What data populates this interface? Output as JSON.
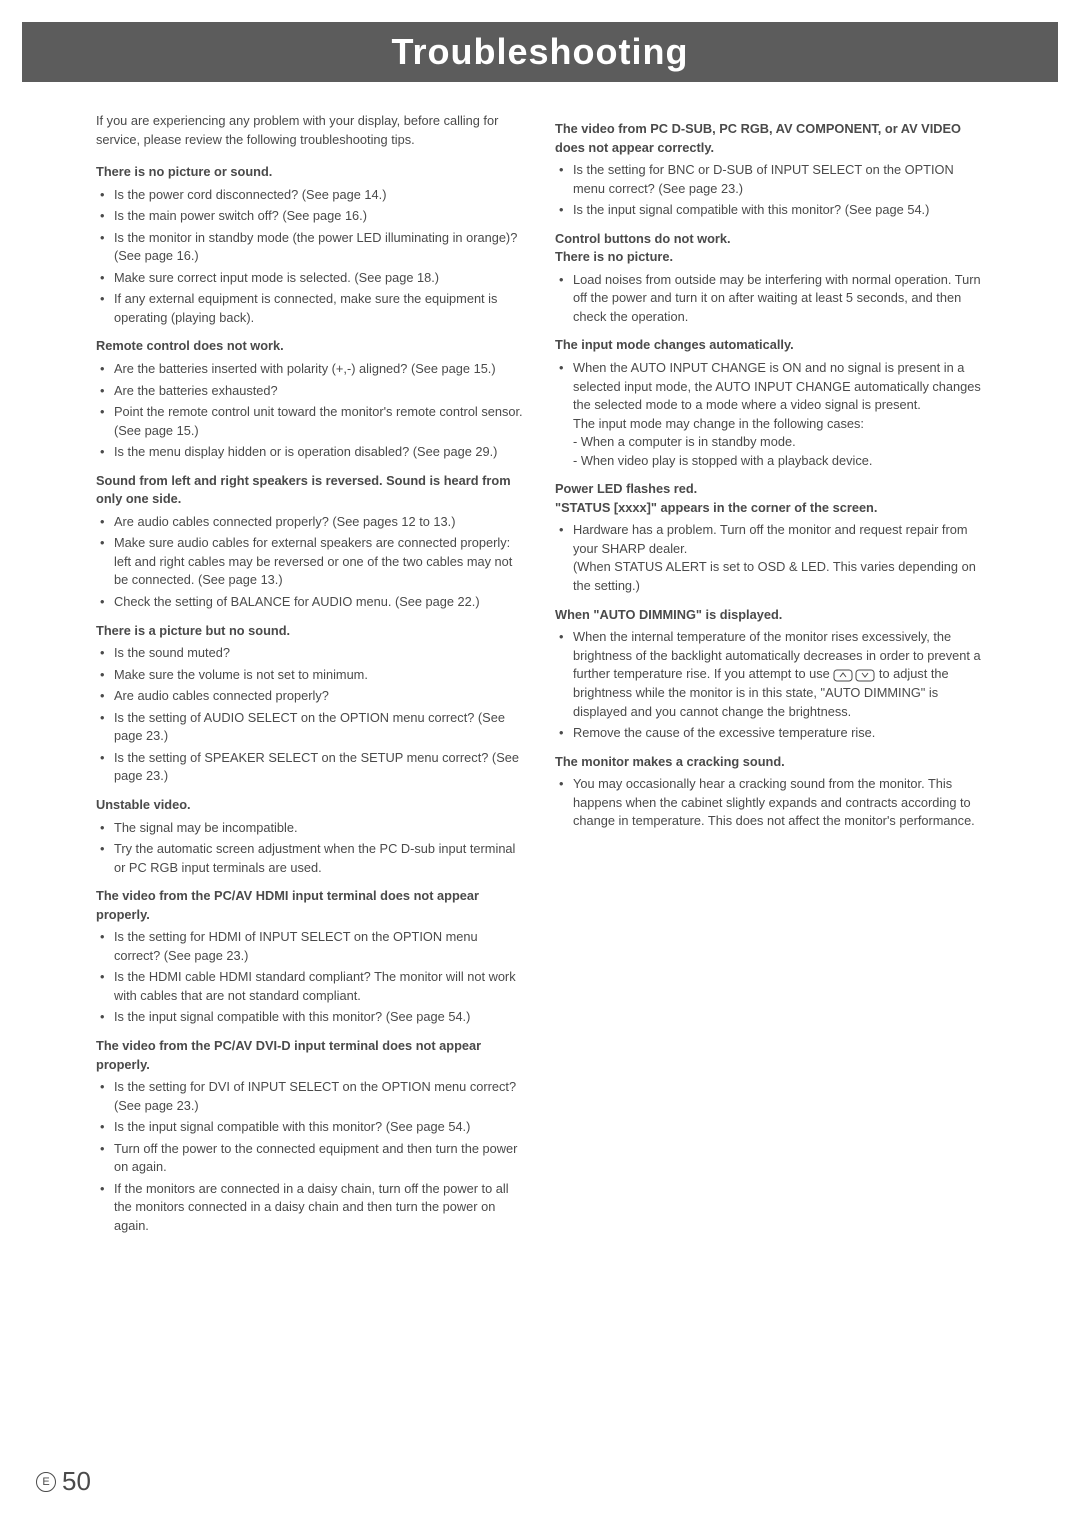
{
  "banner": {
    "title": "Troubleshooting"
  },
  "pageNumber": {
    "letter": "E",
    "num": "50"
  },
  "left": {
    "intro": "If you are experiencing any problem with your display, before calling for service, please review the following troubleshooting tips.",
    "sections": [
      {
        "title": "There is no picture or sound.",
        "items": [
          "Is the power cord disconnected? (See page 14.)",
          "Is the main power switch off? (See page 16.)",
          "Is the monitor in standby mode (the power LED illuminating in orange)? (See page 16.)",
          "Make sure correct input mode is selected. (See page 18.)",
          "If any external equipment is connected, make sure the equipment is operating (playing back)."
        ]
      },
      {
        "title": "Remote control does not work.",
        "items": [
          "Are the batteries inserted with polarity (+,-) aligned? (See page 15.)",
          "Are the batteries exhausted?",
          "Point the remote control unit toward the monitor's remote control sensor. (See page 15.)",
          "Is the menu display hidden or is operation disabled? (See page 29.)"
        ]
      },
      {
        "title": "Sound from left and right speakers is reversed. Sound is heard from only one side.",
        "items": [
          "Are audio cables connected properly? (See pages 12 to 13.)",
          "Make sure audio cables for external speakers are connected properly: left and right cables may be reversed or one of the two cables may not be connected. (See page 13.)",
          "Check the setting of BALANCE for AUDIO menu. (See page 22.)"
        ]
      },
      {
        "title": "There is a picture but no sound.",
        "items": [
          "Is the sound muted?",
          "Make sure the volume is not set to minimum.",
          "Are audio cables connected properly?",
          "Is the setting of AUDIO SELECT on the OPTION menu correct? (See page 23.)",
          "Is the setting of SPEAKER SELECT on the SETUP menu correct? (See page 23.)"
        ]
      },
      {
        "title": "Unstable video.",
        "items": [
          "The signal may be incompatible.",
          "Try the automatic screen adjustment when the PC D-sub input terminal or PC RGB input terminals are used."
        ]
      },
      {
        "title": "The video from the PC/AV HDMI input terminal does not appear properly.",
        "items": [
          "Is the setting for HDMI of INPUT SELECT on the OPTION menu correct? (See page 23.)",
          "Is the HDMI cable HDMI standard compliant? The monitor will not work with cables that are not standard compliant.",
          "Is the input signal compatible with this monitor? (See page 54.)"
        ]
      },
      {
        "title": "The video from the PC/AV DVI-D input terminal does not appear properly.",
        "items": [
          "Is the setting for DVI of INPUT SELECT on the OPTION menu correct? (See page 23.)",
          "Is the input signal compatible with this monitor? (See page 54.)",
          "Turn off the power to the connected equipment and then turn the power on again.",
          "If the monitors are connected in a daisy chain, turn off the power to all the monitors connected in a daisy chain and then turn the power on again."
        ]
      }
    ]
  },
  "right": {
    "sections": [
      {
        "title": "The video from PC D-SUB, PC RGB, AV COMPONENT, or AV VIDEO does not appear correctly.",
        "items": [
          "Is the setting for BNC or D-SUB of INPUT SELECT on the OPTION menu correct? (See page 23.)",
          "Is the input signal compatible with this monitor? (See page 54.)"
        ]
      },
      {
        "title": "Control buttons do not work.\nThere is no picture.",
        "items": [
          "Load noises from outside may be interfering with normal operation. Turn off the power and turn it on after waiting at least 5 seconds, and then check the operation."
        ]
      },
      {
        "title": "The input mode changes automatically.",
        "items": [
          "When the AUTO INPUT CHANGE is ON and no signal is present in a selected input mode, the AUTO INPUT CHANGE automatically changes the selected mode to a mode where a video signal is present.\nThe input mode may change in the following cases:\n- When a computer is in standby mode.\n- When video play is stopped with a playback device."
        ]
      },
      {
        "title": "Power LED flashes red.\n\"STATUS [xxxx]\" appears in the corner of the screen.",
        "items": [
          "Hardware has a problem. Turn off the monitor and request repair from your SHARP dealer.\n(When STATUS ALERT is set to OSD & LED. This varies depending on the setting.)"
        ]
      },
      {
        "title": "When \"AUTO DIMMING\" is displayed.",
        "items": [
          "When the internal temperature of the monitor rises excessively, the brightness of the backlight automatically decreases in order to prevent a further temperature rise. If you attempt to use [BRIGHTNESS-BUTTONS] to adjust the brightness while the monitor is in this state, \"AUTO DIMMING\" is displayed and you cannot change the brightness.",
          "Remove the cause of the excessive temperature rise."
        ]
      },
      {
        "title": "The monitor makes a cracking sound.",
        "items": [
          "You may occasionally hear a cracking sound from the monitor. This happens when the cabinet slightly expands and contracts according to change in temperature. This does not affect the monitor's performance."
        ]
      }
    ]
  }
}
